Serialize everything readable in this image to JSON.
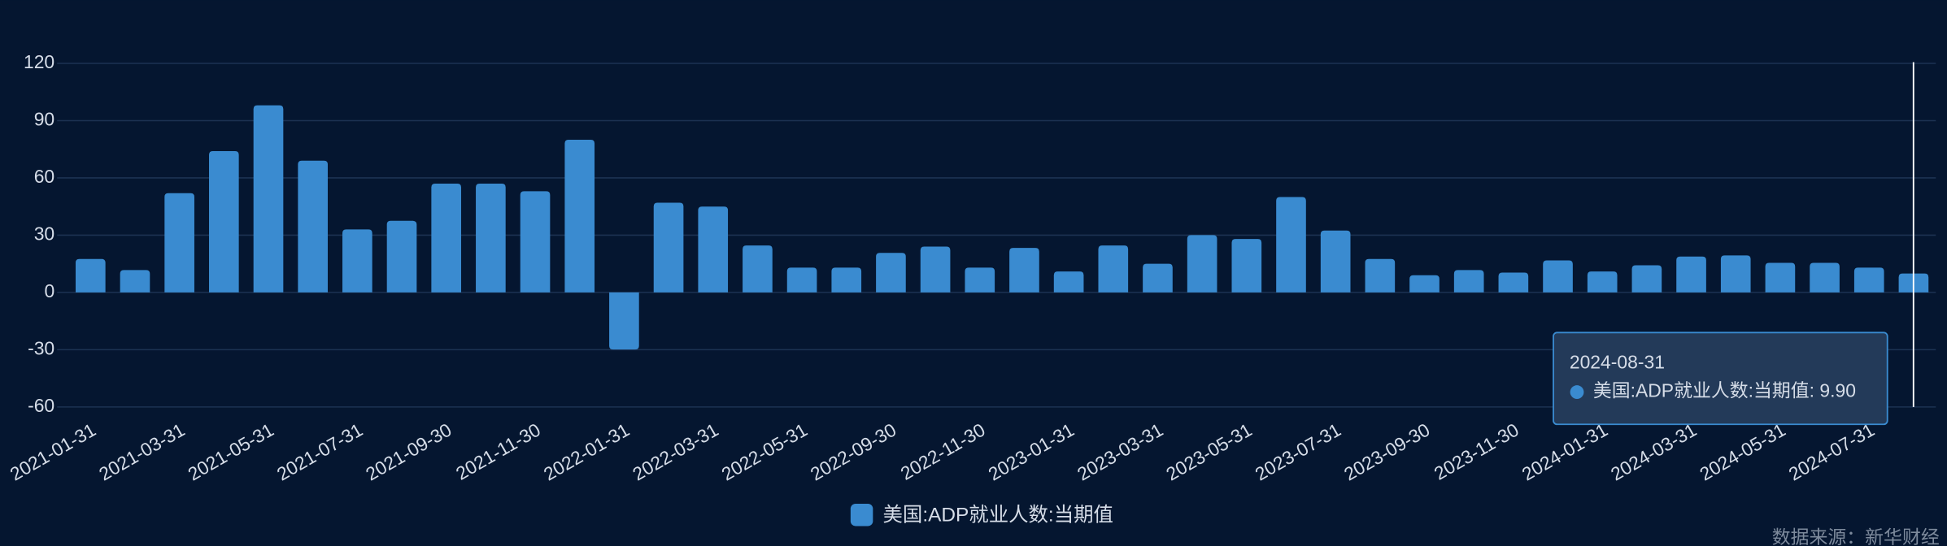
{
  "chart_data": {
    "type": "bar",
    "categories": [
      "2021-01-31",
      null,
      "2021-03-31",
      null,
      "2021-05-31",
      null,
      "2021-07-31",
      null,
      "2021-09-30",
      null,
      "2021-11-30",
      null,
      "2022-01-31",
      null,
      "2022-03-31",
      null,
      "2022-05-31",
      null,
      "2022-09-30",
      null,
      "2022-11-30",
      null,
      "2023-01-31",
      null,
      "2023-03-31",
      null,
      "2023-05-31",
      null,
      "2023-07-31",
      null,
      "2023-09-30",
      null,
      "2023-11-30",
      null,
      "2024-01-31",
      null,
      "2024-03-31",
      null,
      "2024-05-31",
      null,
      "2024-07-31",
      null
    ],
    "series": [
      {
        "name": "美国:ADP就业人数:当期值",
        "color": "#3a8bd0",
        "values": [
          17.5,
          11.7,
          52,
          74,
          98,
          69,
          33,
          37.5,
          57,
          57,
          53,
          80,
          -29.9,
          47,
          45,
          24.6,
          13,
          13,
          20.7,
          24,
          13,
          23.3,
          11,
          24.6,
          15,
          30,
          28,
          50,
          32.4,
          17.5,
          9,
          11.7,
          10.4,
          16.8,
          11,
          14.2,
          18.8,
          19.4,
          15.5,
          15.5,
          13,
          9.9
        ]
      }
    ],
    "ylim": [
      -60,
      120
    ],
    "yticks": [
      -60,
      -30,
      0,
      30,
      60,
      90,
      120
    ],
    "grid": true,
    "legend": "bottom",
    "tooltip": {
      "title": "2024-08-31",
      "text": "美国:ADP就业人数:当期值: 9.90"
    },
    "source": "数据来源：新华财经"
  }
}
